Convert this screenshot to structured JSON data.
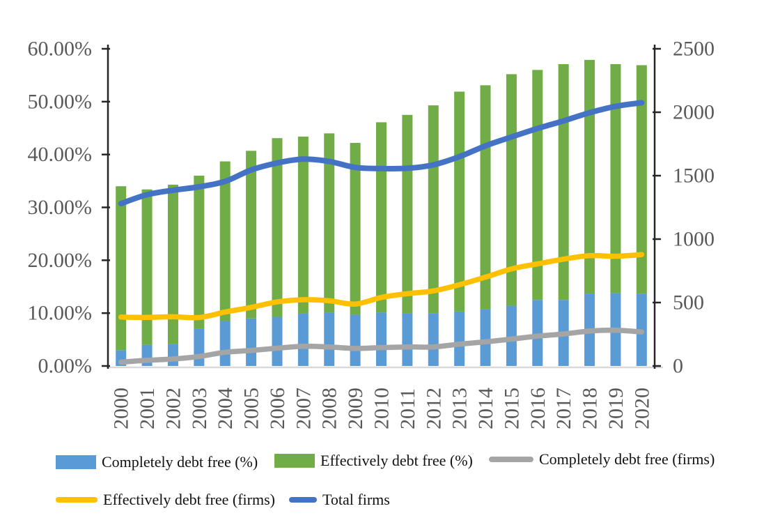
{
  "chart_data": {
    "type": "bar",
    "subtype": "combo-stacked-bar-and-lines",
    "title": "",
    "grid": false,
    "legend_position": "bottom",
    "categories": [
      "2000",
      "2001",
      "2002",
      "2003",
      "2004",
      "2005",
      "2006",
      "2007",
      "2008",
      "2009",
      "2010",
      "2011",
      "2012",
      "2013",
      "2014",
      "2015",
      "2016",
      "2017",
      "2018",
      "2019",
      "2020"
    ],
    "left_axis": {
      "min": 0,
      "max": 60,
      "tick_labels": [
        "60.00%",
        "50.00%",
        "40.00%",
        "30.00%",
        "20.00%",
        "10.00%",
        "0.00%"
      ],
      "tick_values": [
        60,
        50,
        40,
        30,
        20,
        10,
        0
      ]
    },
    "right_axis": {
      "min": 0,
      "max": 2500,
      "tick_labels": [
        "2500",
        "2000",
        "1500",
        "1000",
        "500",
        "0"
      ],
      "tick_values": [
        2500,
        2000,
        1500,
        1000,
        500,
        0
      ]
    },
    "series": [
      {
        "name": "Completely debt free (%)",
        "type": "bar",
        "axis": "left",
        "color": "#5B9BD5",
        "values": [
          3.0,
          4.0,
          4.2,
          7.0,
          8.5,
          9.0,
          9.3,
          9.9,
          10.1,
          9.7,
          10.1,
          9.9,
          10.0,
          10.3,
          10.8,
          11.4,
          12.5,
          12.5,
          13.7,
          13.8,
          13.6
        ]
      },
      {
        "name": "Effectively debt free (%)",
        "type": "bar",
        "axis": "left",
        "color": "#70AD47",
        "stacked": true,
        "values": [
          31.0,
          29.4,
          30.1,
          29.0,
          30.2,
          31.7,
          33.8,
          33.5,
          33.9,
          32.5,
          36.0,
          37.6,
          39.3,
          41.6,
          42.3,
          43.8,
          43.5,
          44.6,
          44.2,
          43.3,
          43.3
        ]
      },
      {
        "name": "Completely debt free (firms)",
        "type": "line",
        "axis": "right",
        "color": "#A5A5A5",
        "values": [
          30,
          45,
          55,
          75,
          108,
          122,
          140,
          155,
          150,
          138,
          145,
          150,
          150,
          172,
          190,
          212,
          235,
          252,
          275,
          282,
          268
        ]
      },
      {
        "name": "Effectively debt free (firms)",
        "type": "line",
        "axis": "right",
        "color": "#FFC000",
        "values": [
          385,
          383,
          388,
          382,
          425,
          462,
          505,
          522,
          514,
          488,
          540,
          570,
          592,
          640,
          700,
          765,
          805,
          842,
          870,
          865,
          878
        ]
      },
      {
        "name": "Total firms",
        "type": "line",
        "axis": "right",
        "color": "#4472C4",
        "values": [
          1280,
          1350,
          1385,
          1412,
          1455,
          1545,
          1600,
          1630,
          1612,
          1565,
          1556,
          1558,
          1585,
          1650,
          1735,
          1805,
          1872,
          1932,
          1996,
          2046,
          2075
        ]
      }
    ]
  },
  "legend": {
    "items": [
      {
        "label": "Completely debt free (%)",
        "color": "#5B9BD5",
        "swatch": "bar"
      },
      {
        "label": "Effectively debt free (%)",
        "color": "#70AD47",
        "swatch": "bar"
      },
      {
        "label": "Completely debt free (firms)",
        "color": "#A5A5A5",
        "swatch": "line"
      },
      {
        "label": "Effectively debt free (firms)",
        "color": "#FFC000",
        "swatch": "line"
      },
      {
        "label": "Total firms",
        "color": "#4472C4",
        "swatch": "line"
      }
    ]
  },
  "colors": {
    "axis_text": "#595959",
    "axis_line": "#262626",
    "baseline": "#D9D9D9",
    "background": "#FFFFFF"
  }
}
